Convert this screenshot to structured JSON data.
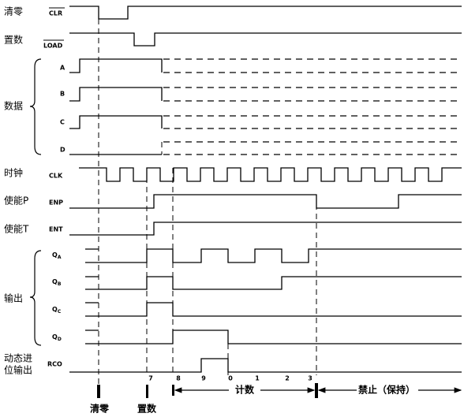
{
  "row_labels": [
    "清零",
    "置数",
    "数据",
    "时钟",
    "使能P",
    "使能T",
    "输出",
    "动态进",
    "位输出"
  ],
  "signals": [
    "CLR",
    "LOAD",
    "A",
    "B",
    "C",
    "D",
    "CLK",
    "ENP",
    "ENT"
  ],
  "outputs": [
    {
      "q": "Q",
      "sub": "A"
    },
    {
      "q": "Q",
      "sub": "B"
    },
    {
      "q": "Q",
      "sub": "C"
    },
    {
      "q": "Q",
      "sub": "D"
    }
  ],
  "rco": "RCO",
  "count_labels": [
    "7",
    "8",
    "9",
    "0",
    "1",
    "2",
    "3"
  ],
  "bottom_labels": [
    "清零",
    "置数",
    "计数",
    "禁止（保持）"
  ]
}
